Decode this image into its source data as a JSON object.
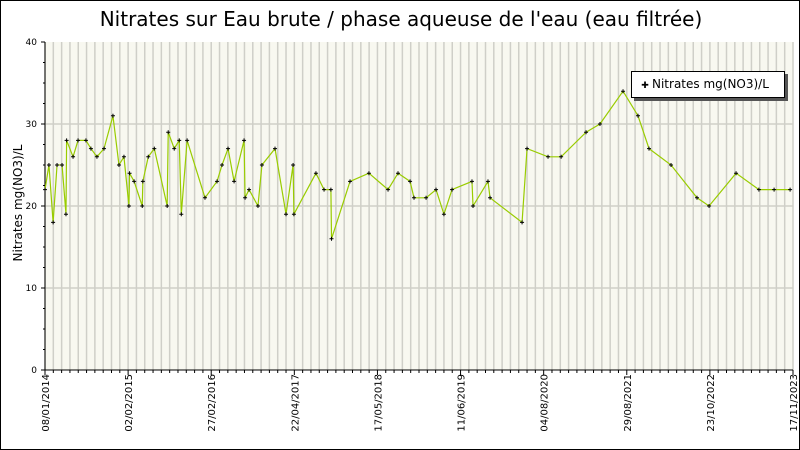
{
  "chart_data": {
    "type": "line",
    "title": "Nitrates sur Eau brute / phase aqueuse de l'eau (eau filtrée)",
    "xlabel": "",
    "ylabel": "Nitrates mg(NO3)/L",
    "xlim": [
      "2014-01-08",
      "2023-11-17"
    ],
    "ylim": [
      0,
      40
    ],
    "yticks": [
      "0",
      "10",
      "20",
      "30",
      "40"
    ],
    "xticks": [
      "08/01/2014",
      "02/02/2015",
      "27/02/2016",
      "22/04/2017",
      "17/05/2018",
      "11/06/2019",
      "04/08/2020",
      "29/08/2021",
      "23/10/2022",
      "17/11/2023"
    ],
    "grid": true,
    "legend_position": "top-right",
    "series": [
      {
        "name": "Nitrates mg(NO3)/L",
        "color": "#99cc00",
        "points": [
          [
            "2014-01-08",
            22
          ],
          [
            "2014-01-27",
            25
          ],
          [
            "2014-02-16",
            18
          ],
          [
            "2014-03-07",
            25
          ],
          [
            "2014-03-31",
            25
          ],
          [
            "2014-04-19",
            19
          ],
          [
            "2014-04-22",
            28
          ],
          [
            "2014-05-23",
            26
          ],
          [
            "2014-06-16",
            28
          ],
          [
            "2014-07-24",
            28
          ],
          [
            "2014-08-17",
            27
          ],
          [
            "2014-09-15",
            26
          ],
          [
            "2014-10-19",
            27
          ],
          [
            "2014-12-01",
            31
          ],
          [
            "2014-12-30",
            25
          ],
          [
            "2015-01-23",
            26
          ],
          [
            "2015-02-16",
            20
          ],
          [
            "2015-02-19",
            24
          ],
          [
            "2015-03-13",
            23
          ],
          [
            "2015-04-21",
            20
          ],
          [
            "2015-04-24",
            23
          ],
          [
            "2015-05-20",
            26
          ],
          [
            "2015-06-18",
            27
          ],
          [
            "2015-08-19",
            20
          ],
          [
            "2015-08-24",
            29
          ],
          [
            "2015-09-22",
            27
          ],
          [
            "2015-10-16",
            28
          ],
          [
            "2015-10-26",
            19
          ],
          [
            "2015-11-23",
            28
          ],
          [
            "2016-02-17",
            21
          ],
          [
            "2016-04-15",
            23
          ],
          [
            "2016-05-09",
            25
          ],
          [
            "2016-06-07",
            27
          ],
          [
            "2016-07-06",
            23
          ],
          [
            "2016-08-23",
            28
          ],
          [
            "2016-08-28",
            21
          ],
          [
            "2016-09-16",
            22
          ],
          [
            "2016-10-29",
            20
          ],
          [
            "2016-11-17",
            25
          ],
          [
            "2017-01-19",
            27
          ],
          [
            "2017-03-13",
            19
          ],
          [
            "2017-04-16",
            25
          ],
          [
            "2017-04-20",
            19
          ],
          [
            "2017-08-04",
            24
          ],
          [
            "2017-09-12",
            22
          ],
          [
            "2017-10-15",
            22
          ],
          [
            "2017-10-18",
            16
          ],
          [
            "2018-01-15",
            23
          ],
          [
            "2018-04-16",
            24
          ],
          [
            "2018-07-17",
            22
          ],
          [
            "2018-09-03",
            24
          ],
          [
            "2018-10-31",
            23
          ],
          [
            "2018-11-19",
            21
          ],
          [
            "2019-01-16",
            21
          ],
          [
            "2019-03-05",
            22
          ],
          [
            "2019-04-12",
            19
          ],
          [
            "2019-05-21",
            22
          ],
          [
            "2019-08-25",
            23
          ],
          [
            "2019-08-30",
            20
          ],
          [
            "2019-11-10",
            23
          ],
          [
            "2019-11-20",
            21
          ],
          [
            "2020-04-22",
            18
          ],
          [
            "2020-05-16",
            27
          ],
          [
            "2020-08-25",
            26
          ],
          [
            "2020-10-27",
            26
          ],
          [
            "2021-02-24",
            29
          ],
          [
            "2021-05-02",
            30
          ],
          [
            "2021-08-21",
            34
          ],
          [
            "2021-11-01",
            31
          ],
          [
            "2021-12-24",
            27
          ],
          [
            "2022-04-09",
            25
          ],
          [
            "2022-08-12",
            21
          ],
          [
            "2022-10-09",
            20
          ],
          [
            "2023-02-16",
            24
          ],
          [
            "2023-06-06",
            22
          ],
          [
            "2023-08-18",
            22
          ],
          [
            "2023-11-03",
            22
          ]
        ]
      }
    ]
  }
}
